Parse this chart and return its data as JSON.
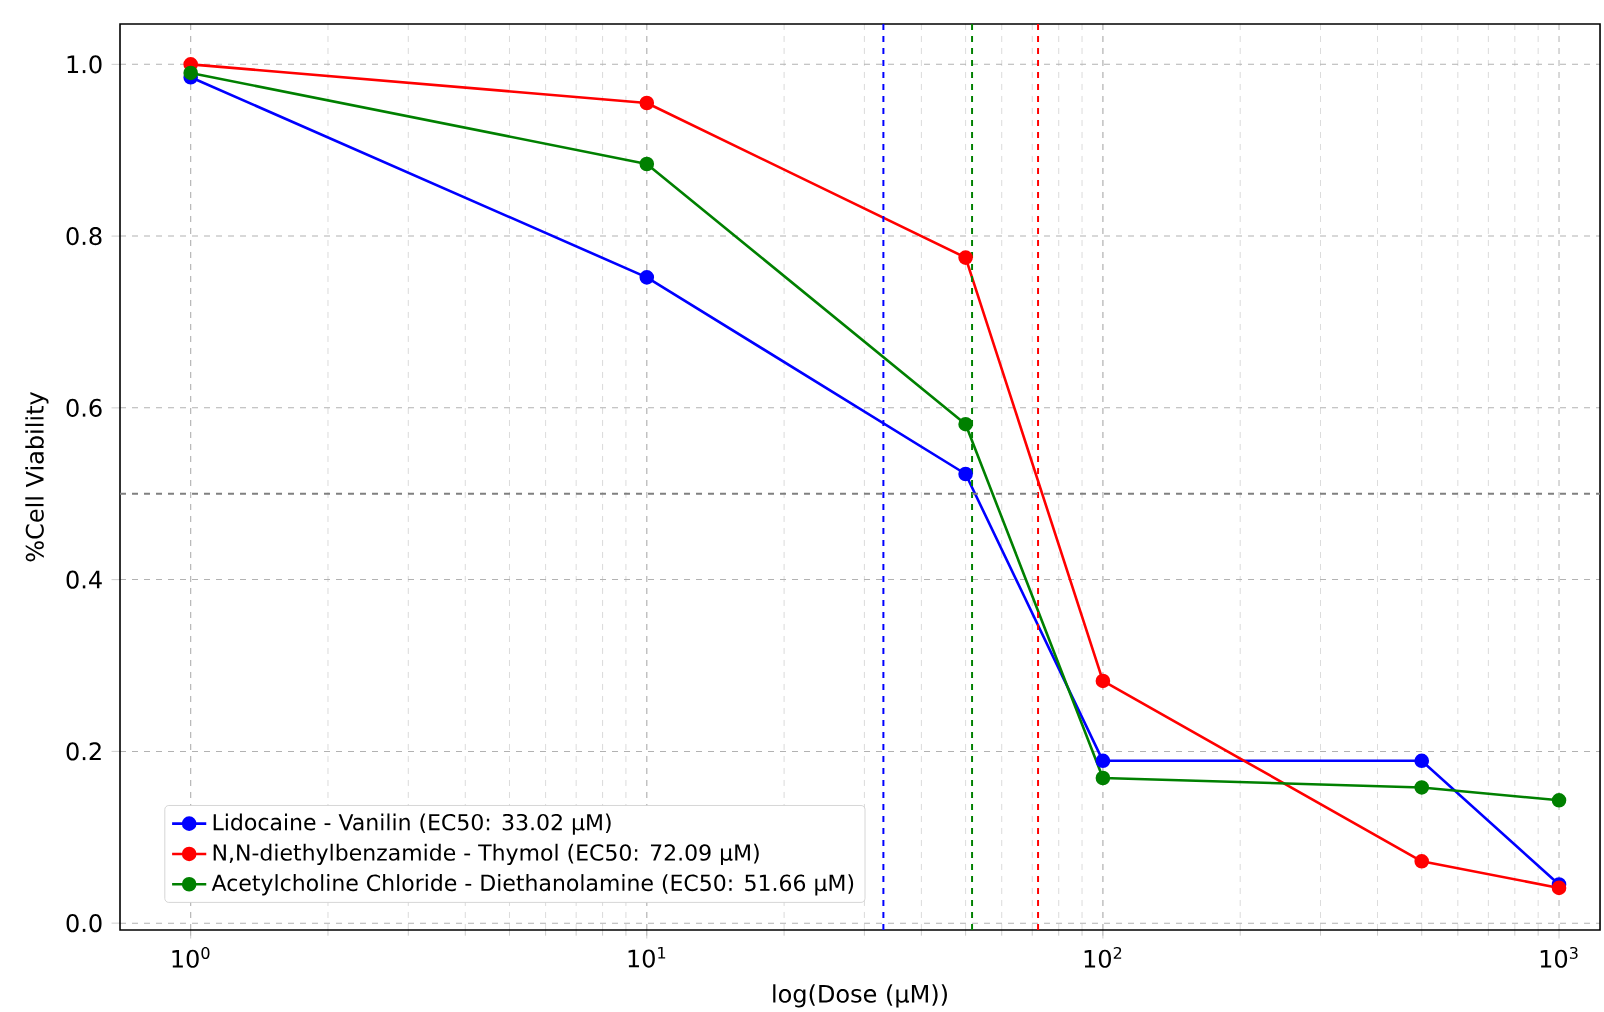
{
  "chart_data": {
    "type": "line",
    "xlabel": "log(Dose (µM))",
    "ylabel": "%Cell Viability",
    "x": [
      1,
      10,
      50,
      100,
      500,
      1000
    ],
    "series": [
      {
        "name": "Lidocaine - Vanilin (EC50: 33.02 µM)",
        "color": "#0000ff",
        "values": [
          0.985,
          0.752,
          0.523,
          0.189,
          0.189,
          0.045
        ]
      },
      {
        "name": "N,N-diethylbenzamide - Thymol (EC50: 72.09 µM)",
        "color": "#ff0000",
        "values": [
          1.0,
          0.955,
          0.775,
          0.282,
          0.072,
          0.041
        ]
      },
      {
        "name": "Acetylcholine Chloride - Diethanolamine (EC50: 51.66 µM)",
        "color": "#008000",
        "values": [
          0.99,
          0.884,
          0.581,
          0.169,
          0.158,
          0.143
        ]
      }
    ],
    "ref_lines": [
      {
        "axis": "x",
        "value": 33.02,
        "color": "#0000ff",
        "line_style": "dashed"
      },
      {
        "axis": "x",
        "value": 72.09,
        "color": "#ff0000",
        "line_style": "dashed"
      },
      {
        "axis": "x",
        "value": 51.66,
        "color": "#008000",
        "line_style": "dashed"
      },
      {
        "axis": "y",
        "value": 0.5,
        "color": "#808080",
        "line_style": "dashed"
      }
    ],
    "log": "x",
    "xlim": [
      0.7,
      1230
    ],
    "ylim": [
      -0.008,
      1.047
    ],
    "xticks": [
      {
        "value": 1,
        "label": "10$^{0}$"
      },
      {
        "value": 10,
        "label": "10$^{1}$"
      },
      {
        "value": 100,
        "label": "10$^{2}$"
      },
      {
        "value": 1000,
        "label": "10$^{3}$"
      }
    ],
    "yticks": [
      {
        "value": 0,
        "label": "0.0"
      },
      {
        "value": 0.2,
        "label": "0.2"
      },
      {
        "value": 0.4,
        "label": "0.4"
      },
      {
        "value": 0.6,
        "label": "0.6"
      },
      {
        "value": 0.8,
        "label": "0.8"
      },
      {
        "value": 1.0,
        "label": "1.0"
      }
    ],
    "grid": true,
    "legend": "bottom left",
    "marker": "circle",
    "line_style": "solid"
  }
}
